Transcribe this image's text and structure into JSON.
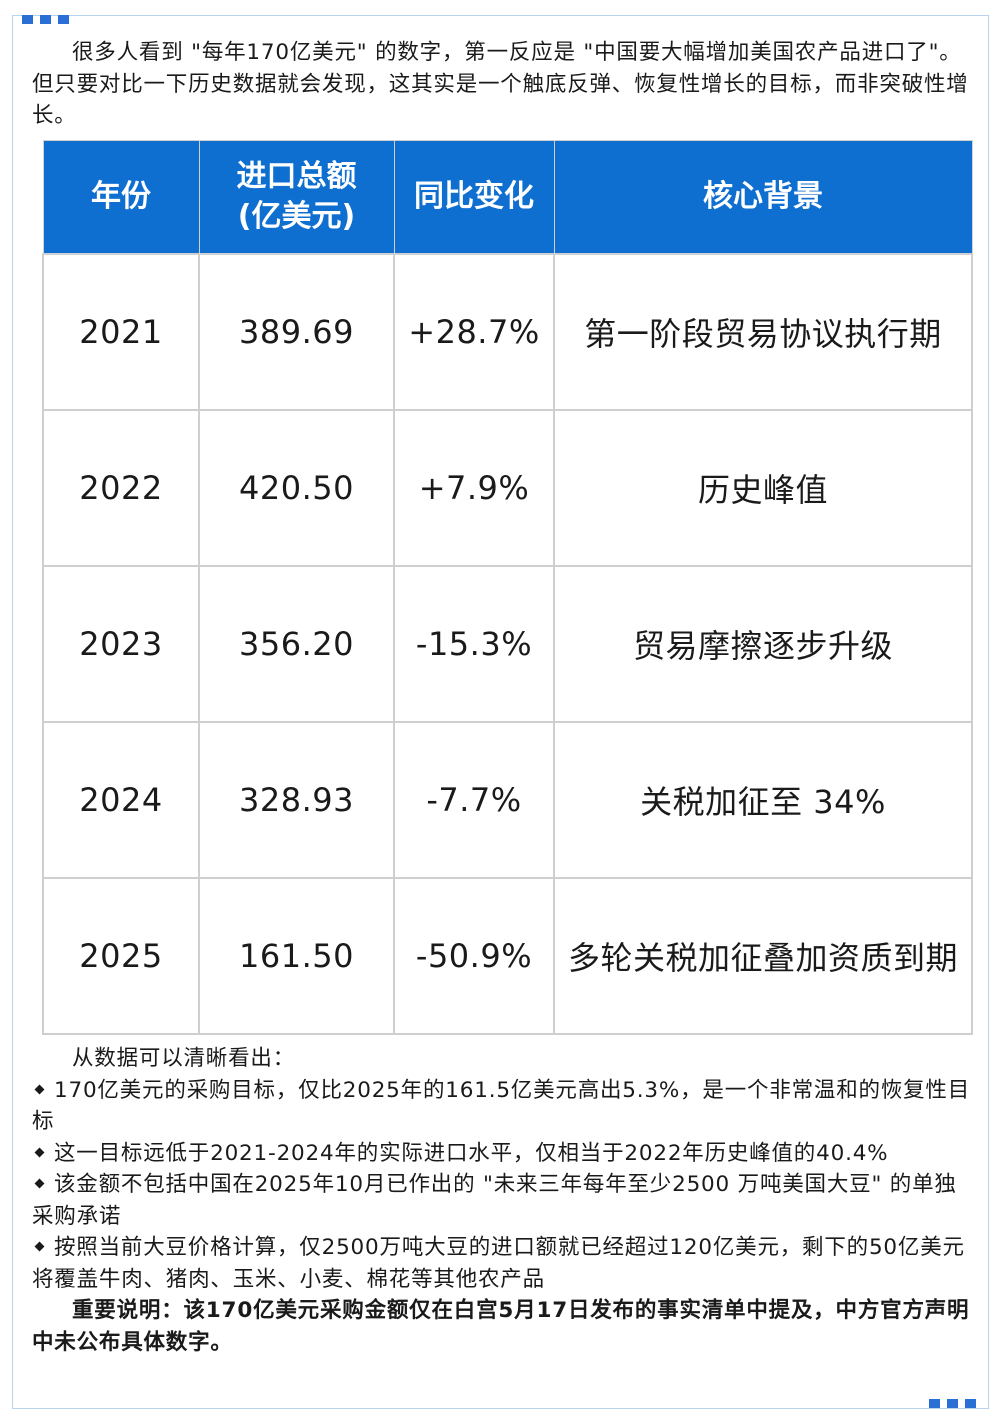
{
  "intro": "很多人看到 \"每年170亿美元\" 的数字，第一反应是 \"中国要大幅增加美国农产品进口了\"。但只要对比一下历史数据就会发现，这其实是一个触底反弹、恢复性增长的目标，而非突破性增长。",
  "table": {
    "headers": [
      "年份",
      "进口总额\n(亿美元)",
      "同比变化",
      "核心背景"
    ],
    "rows": [
      [
        "2021",
        "389.69",
        "+28.7%",
        "第一阶段贸易协议执行期"
      ],
      [
        "2022",
        "420.50",
        "+7.9%",
        "历史峰值"
      ],
      [
        "2023",
        "356.20",
        "-15.3%",
        "贸易摩擦逐步升级"
      ],
      [
        "2024",
        "328.93",
        "-7.7%",
        "关税加征至 34%"
      ],
      [
        "2025",
        "161.50",
        "-50.9%",
        "多轮关税加征叠加资质到期"
      ]
    ]
  },
  "summary_lead": "从数据可以清晰看出：",
  "bullets": [
    "170亿美元的采购目标，仅比2025年的161.5亿美元高出5.3%，是一个非常温和的恢复性目标",
    "这一目标远低于2021-2024年的实际进口水平，仅相当于2022年历史峰值的40.4%",
    "该金额不包括中国在2025年10月已作出的 \"未来三年每年至少2500 万吨美国大豆\" 的单独采购承诺",
    "按照当前大豆价格计算，仅2500万吨大豆的进口额就已经超过120亿美元，剩下的50亿美元将覆盖牛肉、猪肉、玉米、小麦、棉花等其他农产品"
  ],
  "note": "重要说明：该170亿美元采购金额仅在白宫5月17日发布的事实清单中提及，中方官方声明中未公布具体数字。"
}
